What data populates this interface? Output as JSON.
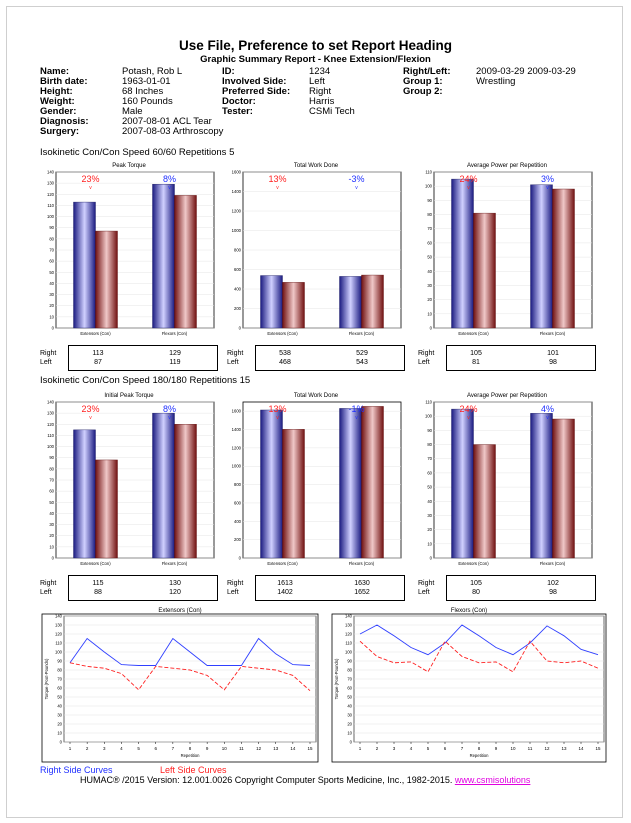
{
  "report": {
    "title": "Use File, Preference to set Report Heading",
    "subtitle": "Graphic Summary Report - Knee Extension/Flexion"
  },
  "patient": [
    {
      "label": "Name:",
      "value": "Potash, Rob L"
    },
    {
      "label": "Birth date:",
      "value": "1963-01-01"
    },
    {
      "label": "Height:",
      "value": "68 Inches"
    },
    {
      "label": "Weight:",
      "value": "160 Pounds"
    },
    {
      "label": "Gender:",
      "value": "Male"
    },
    {
      "label": "Diagnosis:",
      "value": "2007-08-01 ACL Tear"
    },
    {
      "label": "Surgery:",
      "value": "2007-08-03 Arthroscopy"
    }
  ],
  "test_info": [
    {
      "label": "ID:",
      "value": "1234"
    },
    {
      "label": "Involved Side:",
      "value": "Left"
    },
    {
      "label": "Preferred Side:",
      "value": "Right"
    },
    {
      "label": "Doctor:",
      "value": "Harris"
    },
    {
      "label": "Tester:",
      "value": "CSMi Tech"
    }
  ],
  "session_info": [
    {
      "label": "Right/Left:",
      "value": "2009-03-29 2009-03-29"
    },
    {
      "label": "Group 1:",
      "value": "Wrestling"
    },
    {
      "label": "Group 2:",
      "value": ""
    }
  ],
  "sections": [
    {
      "heading": "Isokinetic Con/Con  Speed 60/60 Repetitions 5"
    },
    {
      "heading": "Isokinetic Con/Con  Speed 180/180 Repetitions 15"
    }
  ],
  "row_labels": {
    "right": "Right",
    "left": "Left"
  },
  "colors": {
    "right": "#2a2ab8",
    "left": "#a02020",
    "right_line": "#3040ff",
    "left_line": "#ff2020"
  },
  "chart_data": [
    {
      "type": "bar",
      "title": "Peak Torque",
      "categories": [
        "Extensors (Con)",
        "Flexors (Con)"
      ],
      "series": [
        {
          "name": "Right",
          "values": [
            113,
            129
          ]
        },
        {
          "name": "Left",
          "values": [
            87,
            119
          ]
        }
      ],
      "deficits": [
        "23%",
        "8%"
      ],
      "deficit_colors": [
        "#ff2020",
        "#2030ff"
      ],
      "ylim": [
        0,
        140
      ],
      "yticks": [
        0,
        10,
        20,
        30,
        40,
        50,
        60,
        70,
        80,
        90,
        100,
        110,
        120,
        130,
        140
      ],
      "table": {
        "right": [
          "113",
          "129"
        ],
        "left": [
          "87",
          "119"
        ]
      }
    },
    {
      "type": "bar",
      "title": "Total Work Done",
      "categories": [
        "Extensors (Con)",
        "Flexors (Con)"
      ],
      "series": [
        {
          "name": "Right",
          "values": [
            538,
            529
          ]
        },
        {
          "name": "Left",
          "values": [
            468,
            543
          ]
        }
      ],
      "deficits": [
        "13%",
        "-3%"
      ],
      "deficit_colors": [
        "#ff2020",
        "#2030ff"
      ],
      "ylim": [
        0,
        1600
      ],
      "yticks": [
        0,
        200,
        400,
        600,
        800,
        1000,
        1200,
        1400,
        1600
      ],
      "table": {
        "right": [
          "538",
          "529"
        ],
        "left": [
          "468",
          "543"
        ]
      }
    },
    {
      "type": "bar",
      "title": "Average Power per Repetition",
      "categories": [
        "Extensors (Con)",
        "Flexors (Con)"
      ],
      "series": [
        {
          "name": "Right",
          "values": [
            105,
            101
          ]
        },
        {
          "name": "Left",
          "values": [
            81,
            98
          ]
        }
      ],
      "deficits": [
        "24%",
        "3%"
      ],
      "deficit_colors": [
        "#ff2020",
        "#2030ff"
      ],
      "ylim": [
        0,
        110
      ],
      "yticks": [
        0,
        10,
        20,
        30,
        40,
        50,
        60,
        70,
        80,
        90,
        100,
        110
      ],
      "table": {
        "right": [
          "105",
          "101"
        ],
        "left": [
          "81",
          "98"
        ]
      }
    },
    {
      "type": "bar",
      "title": "Initial Peak Torque",
      "categories": [
        "Extensors (Con)",
        "Flexors (Con)"
      ],
      "series": [
        {
          "name": "Right",
          "values": [
            115,
            130
          ]
        },
        {
          "name": "Left",
          "values": [
            88,
            120
          ]
        }
      ],
      "deficits": [
        "23%",
        "8%"
      ],
      "deficit_colors": [
        "#ff2020",
        "#2030ff"
      ],
      "ylim": [
        0,
        140
      ],
      "yticks": [
        0,
        10,
        20,
        30,
        40,
        50,
        60,
        70,
        80,
        90,
        100,
        110,
        120,
        130,
        140
      ],
      "table": {
        "right": [
          "115",
          "130"
        ],
        "left": [
          "88",
          "120"
        ]
      }
    },
    {
      "type": "bar",
      "title": "Total Work Done",
      "categories": [
        "Extensors (Con)",
        "Flexors (Con)"
      ],
      "series": [
        {
          "name": "Right",
          "values": [
            1613,
            1630
          ]
        },
        {
          "name": "Left",
          "values": [
            1402,
            1652
          ]
        }
      ],
      "deficits": [
        "13%",
        "-1%"
      ],
      "deficit_colors": [
        "#ff2020",
        "#2030ff"
      ],
      "ylim": [
        0,
        1700
      ],
      "yticks": [
        0,
        200,
        400,
        600,
        800,
        1000,
        1200,
        1400,
        1600
      ],
      "table": {
        "right": [
          "1613",
          "1630"
        ],
        "left": [
          "1402",
          "1652"
        ]
      }
    },
    {
      "type": "bar",
      "title": "Average Power per Repetition",
      "categories": [
        "Extensors (Con)",
        "Flexors (Con)"
      ],
      "series": [
        {
          "name": "Right",
          "values": [
            105,
            102
          ]
        },
        {
          "name": "Left",
          "values": [
            80,
            98
          ]
        }
      ],
      "deficits": [
        "24%",
        "4%"
      ],
      "deficit_colors": [
        "#ff2020",
        "#2030ff"
      ],
      "ylim": [
        0,
        110
      ],
      "yticks": [
        0,
        10,
        20,
        30,
        40,
        50,
        60,
        70,
        80,
        90,
        100,
        110
      ],
      "table": {
        "right": [
          "105",
          "102"
        ],
        "left": [
          "80",
          "98"
        ]
      }
    },
    {
      "type": "line",
      "title": "Extensors (Con)",
      "xlabel": "Repetition",
      "ylabel": "Torque (Foot-Pounds)",
      "x": [
        1,
        2,
        3,
        4,
        5,
        6,
        7,
        8,
        9,
        10,
        11,
        12,
        13,
        14,
        15
      ],
      "ylim": [
        0,
        140
      ],
      "yticks": [
        0,
        10,
        20,
        30,
        40,
        50,
        60,
        70,
        80,
        90,
        100,
        110,
        120,
        130,
        140
      ],
      "series": [
        {
          "name": "Right",
          "values": [
            88,
            115,
            100,
            86,
            85,
            85,
            115,
            100,
            85,
            85,
            85,
            115,
            98,
            86,
            85
          ]
        },
        {
          "name": "Left",
          "values": [
            88,
            84,
            82,
            76,
            58,
            84,
            82,
            80,
            74,
            58,
            84,
            82,
            80,
            74,
            57
          ]
        }
      ]
    },
    {
      "type": "line",
      "title": "Flexors (Con)",
      "xlabel": "Repetition",
      "ylabel": "Torque (Foot-Pounds)",
      "x": [
        1,
        2,
        3,
        4,
        5,
        6,
        7,
        8,
        9,
        10,
        11,
        12,
        13,
        14,
        15
      ],
      "ylim": [
        0,
        140
      ],
      "yticks": [
        0,
        10,
        20,
        30,
        40,
        50,
        60,
        70,
        80,
        90,
        100,
        110,
        120,
        130,
        140
      ],
      "series": [
        {
          "name": "Right",
          "values": [
            120,
            130,
            118,
            105,
            97,
            110,
            130,
            118,
            105,
            97,
            110,
            129,
            118,
            103,
            97
          ]
        },
        {
          "name": "Left",
          "values": [
            112,
            95,
            88,
            89,
            78,
            112,
            95,
            88,
            89,
            78,
            112,
            90,
            88,
            90,
            82
          ]
        }
      ]
    }
  ],
  "legend": {
    "right": "Right Side Curves",
    "left": "Left Side Curves"
  },
  "footer": {
    "text": "HUMAC® /2015 Version: 12.001.0026 Copyright Computer Sports Medicine, Inc., 1982-2015. ",
    "link": "www.csmisolutions"
  }
}
